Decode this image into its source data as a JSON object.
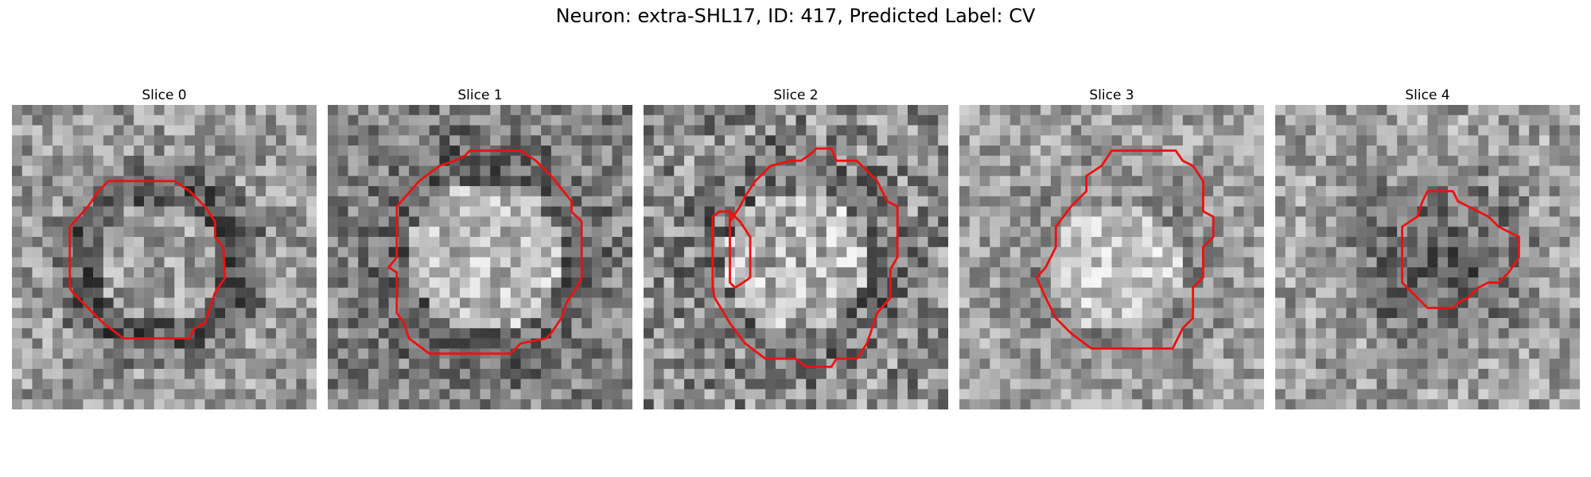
{
  "figure": {
    "title": "Neuron: extra-SHL17, ID: 417, Predicted Label: CV",
    "contour_color": "#ee1111"
  },
  "panels": [
    {
      "title": "Slice 0"
    },
    {
      "title": "Slice 1"
    },
    {
      "title": "Slice 2"
    },
    {
      "title": "Slice 3"
    },
    {
      "title": "Slice 4"
    }
  ]
}
